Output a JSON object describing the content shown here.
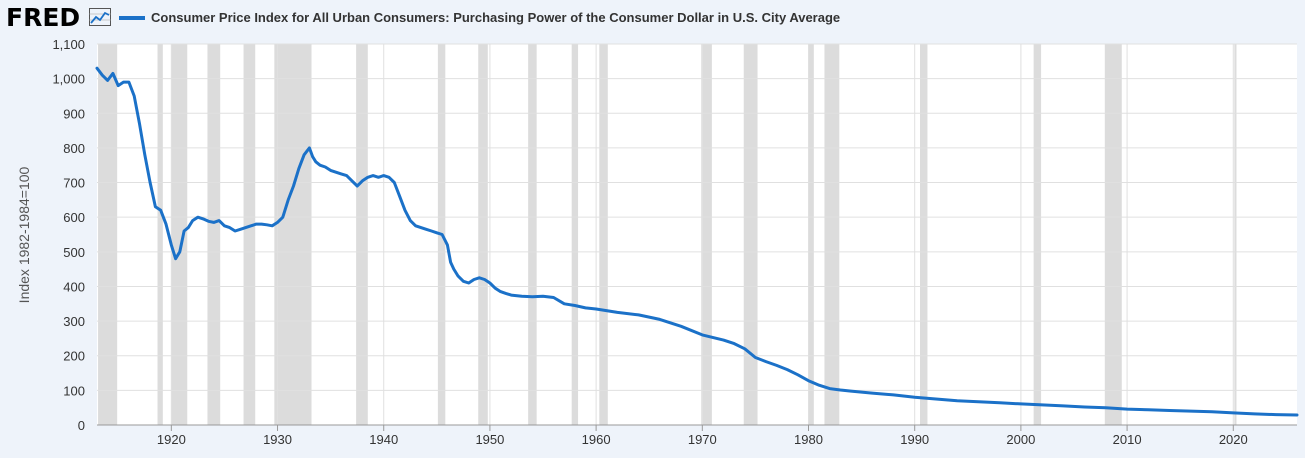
{
  "header": {
    "logo_text": "FRED",
    "logo_icon": "line-graph-icon",
    "series_title": "Consumer Price Index for All Urban Consumers: Purchasing Power of the Consumer Dollar in U.S. City Average"
  },
  "colors": {
    "series": "#1b71c8",
    "recession": "#dcdcdc",
    "grid": "#e0e0e0",
    "background": "#eef3fa"
  },
  "chart_data": {
    "type": "line",
    "title": "Consumer Price Index for All Urban Consumers: Purchasing Power of the Consumer Dollar in U.S. City Average",
    "ylabel": "Index 1982-1984=100",
    "xlabel": "",
    "xlim": [
      1913,
      2026
    ],
    "ylim": [
      0,
      1100
    ],
    "y_ticks": [
      {
        "value": 0,
        "label": "0"
      },
      {
        "value": 100,
        "label": "100"
      },
      {
        "value": 200,
        "label": "200"
      },
      {
        "value": 300,
        "label": "300"
      },
      {
        "value": 400,
        "label": "400"
      },
      {
        "value": 500,
        "label": "500"
      },
      {
        "value": 600,
        "label": "600"
      },
      {
        "value": 700,
        "label": "700"
      },
      {
        "value": 800,
        "label": "800"
      },
      {
        "value": 900,
        "label": "900"
      },
      {
        "value": 1000,
        "label": "1,000"
      },
      {
        "value": 1100,
        "label": "1,100"
      }
    ],
    "x_ticks": [
      {
        "value": 1920,
        "label": "1920"
      },
      {
        "value": 1930,
        "label": "1930"
      },
      {
        "value": 1940,
        "label": "1940"
      },
      {
        "value": 1950,
        "label": "1950"
      },
      {
        "value": 1960,
        "label": "1960"
      },
      {
        "value": 1970,
        "label": "1970"
      },
      {
        "value": 1980,
        "label": "1980"
      },
      {
        "value": 1990,
        "label": "1990"
      },
      {
        "value": 2000,
        "label": "2000"
      },
      {
        "value": 2010,
        "label": "2010"
      },
      {
        "value": 2020,
        "label": "2020"
      }
    ],
    "grid": true,
    "recessions": [
      [
        1913.1,
        1914.9
      ],
      [
        1918.7,
        1919.2
      ],
      [
        1920.0,
        1921.5
      ],
      [
        1923.4,
        1924.6
      ],
      [
        1926.8,
        1927.9
      ],
      [
        1929.7,
        1933.2
      ],
      [
        1937.4,
        1938.5
      ],
      [
        1945.1,
        1945.8
      ],
      [
        1948.9,
        1949.8
      ],
      [
        1953.6,
        1954.4
      ],
      [
        1957.7,
        1958.3
      ],
      [
        1960.3,
        1961.1
      ],
      [
        1969.9,
        1970.9
      ],
      [
        1973.9,
        1975.2
      ],
      [
        1980.0,
        1980.5
      ],
      [
        1981.5,
        1982.9
      ],
      [
        1990.5,
        1991.2
      ],
      [
        2001.2,
        2001.9
      ],
      [
        2007.9,
        2009.5
      ],
      [
        2020.1,
        2020.3
      ]
    ],
    "series": [
      {
        "x": [
          1913.0,
          1913.5,
          1914.0,
          1914.5,
          1915.0,
          1915.5,
          1916.0,
          1916.5,
          1917.0,
          1917.5,
          1918.0,
          1918.5,
          1919.0,
          1919.5,
          1920.0,
          1920.4,
          1920.8,
          1921.2,
          1921.6,
          1922.0,
          1922.5,
          1923.0,
          1923.5,
          1924.0,
          1924.5,
          1925.0,
          1925.5,
          1926.0,
          1926.5,
          1927.0,
          1927.5,
          1928.0,
          1928.5,
          1929.0,
          1929.5,
          1930.0,
          1930.5,
          1931.0,
          1931.5,
          1932.0,
          1932.5,
          1933.0,
          1933.3,
          1933.6,
          1934.0,
          1934.5,
          1935.0,
          1935.5,
          1936.0,
          1936.5,
          1937.0,
          1937.5,
          1938.0,
          1938.5,
          1939.0,
          1939.5,
          1940.0,
          1940.5,
          1941.0,
          1941.5,
          1942.0,
          1942.5,
          1943.0,
          1943.5,
          1944.0,
          1944.5,
          1945.0,
          1945.5,
          1946.0,
          1946.3,
          1946.6,
          1947.0,
          1947.5,
          1948.0,
          1948.5,
          1949.0,
          1949.5,
          1950.0,
          1950.5,
          1951.0,
          1951.5,
          1952.0,
          1953.0,
          1954.0,
          1955.0,
          1956.0,
          1957.0,
          1958.0,
          1959.0,
          1960.0,
          1962.0,
          1964.0,
          1966.0,
          1968.0,
          1970.0,
          1972.0,
          1973.0,
          1974.0,
          1975.0,
          1976.0,
          1977.0,
          1978.0,
          1979.0,
          1980.0,
          1981.0,
          1982.0,
          1983.0,
          1984.0,
          1986.0,
          1988.0,
          1990.0,
          1992.0,
          1994.0,
          1996.0,
          1998.0,
          2000.0,
          2002.0,
          2004.0,
          2006.0,
          2008.0,
          2010.0,
          2012.0,
          2014.0,
          2016.0,
          2018.0,
          2020.0,
          2022.0,
          2024.0,
          2026.0
        ],
        "values": [
          1030,
          1010,
          995,
          1015,
          980,
          990,
          990,
          950,
          870,
          780,
          700,
          630,
          620,
          580,
          520,
          480,
          500,
          560,
          570,
          590,
          600,
          595,
          588,
          585,
          590,
          575,
          570,
          560,
          565,
          570,
          575,
          580,
          580,
          578,
          575,
          585,
          600,
          650,
          690,
          740,
          780,
          800,
          775,
          760,
          750,
          745,
          735,
          730,
          725,
          720,
          705,
          690,
          705,
          715,
          720,
          715,
          720,
          715,
          700,
          660,
          620,
          590,
          575,
          570,
          565,
          560,
          555,
          550,
          520,
          470,
          450,
          430,
          415,
          410,
          420,
          425,
          420,
          410,
          395,
          385,
          380,
          375,
          372,
          370,
          372,
          368,
          350,
          345,
          338,
          335,
          325,
          318,
          305,
          285,
          260,
          245,
          235,
          220,
          195,
          183,
          172,
          160,
          145,
          128,
          115,
          105,
          101,
          98,
          92,
          87,
          80,
          75,
          70,
          67,
          64,
          61,
          58,
          55,
          52,
          50,
          46,
          44,
          42,
          40,
          38,
          35,
          32,
          30,
          29
        ]
      }
    ]
  }
}
